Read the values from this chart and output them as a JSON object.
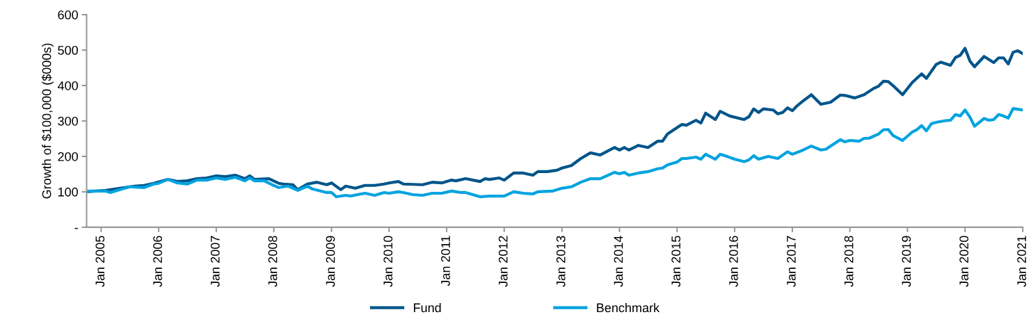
{
  "chart_data": {
    "type": "line",
    "ylabel": "Growth of $100,000 ($000s)",
    "xlim": [
      "2004-10",
      "2021-01"
    ],
    "xticks": [
      {
        "value": "2005-01",
        "label": "Jan 2005"
      },
      {
        "value": "2006-01",
        "label": "Jan 2006"
      },
      {
        "value": "2007-01",
        "label": "Jan 2007"
      },
      {
        "value": "2008-01",
        "label": "Jan 2008"
      },
      {
        "value": "2009-01",
        "label": "Jan 2009"
      },
      {
        "value": "2010-01",
        "label": "Jan 2010"
      },
      {
        "value": "2011-01",
        "label": "Jan 2011"
      },
      {
        "value": "2012-01",
        "label": "Jan 2012"
      },
      {
        "value": "2013-01",
        "label": "Jan 2013"
      },
      {
        "value": "2014-01",
        "label": "Jan 2014"
      },
      {
        "value": "2015-01",
        "label": "Jan 2015"
      },
      {
        "value": "2016-01",
        "label": "Jan 2016"
      },
      {
        "value": "2017-01",
        "label": "Jan 2017"
      },
      {
        "value": "2018-01",
        "label": "Jan 2018"
      },
      {
        "value": "2019-01",
        "label": "Jan 2019"
      },
      {
        "value": "2020-01",
        "label": "Jan 2020"
      },
      {
        "value": "2021-01",
        "label": "Jan 2021"
      }
    ],
    "ylim": [
      0,
      600
    ],
    "yticks": [
      {
        "value": 0,
        "label": "-"
      },
      100,
      200,
      300,
      400,
      500,
      600
    ],
    "grid": false,
    "legend": "bottom",
    "marker": "none",
    "line_style": "solid",
    "series": [
      {
        "name": "Fund",
        "color": "#00558a",
        "x": [
          "2004-10",
          "2005-02",
          "2005-05",
          "2005-08",
          "2005-10",
          "2005-12",
          "2006-03",
          "2006-05",
          "2006-07",
          "2006-09",
          "2006-11",
          "2007-01",
          "2007-03",
          "2007-05",
          "2007-07",
          "2007-08",
          "2007-09",
          "2007-12",
          "2008-02",
          "2008-03",
          "2008-05",
          "2008-06",
          "2008-08",
          "2008-10",
          "2008-12",
          "2009-01",
          "2009-03",
          "2009-04",
          "2009-06",
          "2009-08",
          "2009-10",
          "2009-12",
          "2010-01",
          "2010-03",
          "2010-04",
          "2010-08",
          "2010-10",
          "2010-12",
          "2011-02",
          "2011-03",
          "2011-05",
          "2011-08",
          "2011-09",
          "2011-10",
          "2011-12",
          "2012-01",
          "2012-03",
          "2012-05",
          "2012-07",
          "2012-08",
          "2012-10",
          "2012-12",
          "2013-01",
          "2013-03",
          "2013-05",
          "2013-07",
          "2013-09",
          "2013-12",
          "2014-01",
          "2014-02",
          "2014-03",
          "2014-05",
          "2014-07",
          "2014-09",
          "2014-10",
          "2014-11",
          "2015-02",
          "2015-03",
          "2015-05",
          "2015-06",
          "2015-07",
          "2015-09",
          "2015-10",
          "2015-12",
          "2016-03",
          "2016-04",
          "2016-05",
          "2016-06",
          "2016-07",
          "2016-09",
          "2016-10",
          "2016-11",
          "2016-12",
          "2017-01",
          "2017-02",
          "2017-03",
          "2017-05",
          "2017-07",
          "2017-09",
          "2017-11",
          "2017-12",
          "2018-02",
          "2018-04",
          "2018-06",
          "2018-07",
          "2018-08",
          "2018-09",
          "2018-10",
          "2018-12",
          "2019-02",
          "2019-04",
          "2019-05",
          "2019-07",
          "2019-08",
          "2019-10",
          "2019-11",
          "2019-12",
          "2020-01",
          "2020-02",
          "2020-03",
          "2020-05",
          "2020-07",
          "2020-08",
          "2020-09",
          "2020-10",
          "2020-11",
          "2020-12",
          "2021-01"
        ],
        "values": [
          100,
          104,
          110,
          116,
          118,
          124,
          135,
          129,
          131,
          137,
          139,
          145,
          143,
          147,
          137,
          145,
          135,
          137,
          124,
          122,
          120,
          106,
          122,
          127,
          120,
          125,
          106,
          116,
          110,
          118,
          118,
          122,
          125,
          129,
          122,
          120,
          127,
          125,
          133,
          131,
          137,
          129,
          137,
          135,
          139,
          133,
          153,
          153,
          147,
          157,
          157,
          161,
          167,
          174,
          194,
          210,
          204,
          225,
          218,
          225,
          218,
          231,
          225,
          243,
          243,
          263,
          290,
          288,
          302,
          294,
          322,
          304,
          327,
          314,
          304,
          312,
          334,
          324,
          334,
          331,
          320,
          324,
          337,
          329,
          343,
          353,
          374,
          347,
          353,
          373,
          372,
          365,
          374,
          392,
          398,
          412,
          411,
          400,
          374,
          409,
          433,
          420,
          459,
          466,
          457,
          479,
          485,
          505,
          469,
          453,
          482,
          465,
          478,
          478,
          461,
          494,
          498,
          490
        ]
      },
      {
        "name": "Benchmark",
        "color": "#00a3e0",
        "x": [
          "2004-10",
          "2004-11",
          "2005-02",
          "2005-03",
          "2005-05",
          "2005-07",
          "2005-10",
          "2005-12",
          "2006-01",
          "2006-03",
          "2006-05",
          "2006-07",
          "2006-09",
          "2006-11",
          "2007-01",
          "2007-03",
          "2007-05",
          "2007-07",
          "2007-08",
          "2007-09",
          "2007-11",
          "2008-01",
          "2008-02",
          "2008-04",
          "2008-06",
          "2008-08",
          "2008-09",
          "2008-12",
          "2009-01",
          "2009-02",
          "2009-04",
          "2009-05",
          "2009-08",
          "2009-10",
          "2009-12",
          "2010-01",
          "2010-03",
          "2010-04",
          "2010-06",
          "2010-08",
          "2010-10",
          "2010-12",
          "2011-02",
          "2011-04",
          "2011-05",
          "2011-08",
          "2011-10",
          "2012-01",
          "2012-03",
          "2012-05",
          "2012-07",
          "2012-08",
          "2012-11",
          "2013-01",
          "2013-03",
          "2013-05",
          "2013-07",
          "2013-09",
          "2013-12",
          "2014-01",
          "2014-02",
          "2014-03",
          "2014-05",
          "2014-07",
          "2014-09",
          "2014-10",
          "2014-11",
          "2015-01",
          "2015-02",
          "2015-03",
          "2015-05",
          "2015-06",
          "2015-07",
          "2015-09",
          "2015-10",
          "2015-11",
          "2016-01",
          "2016-03",
          "2016-04",
          "2016-05",
          "2016-06",
          "2016-08",
          "2016-10",
          "2016-12",
          "2017-01",
          "2017-03",
          "2017-05",
          "2017-07",
          "2017-08",
          "2017-11",
          "2017-12",
          "2018-01",
          "2018-03",
          "2018-04",
          "2018-05",
          "2018-07",
          "2018-08",
          "2018-09",
          "2018-10",
          "2018-12",
          "2019-02",
          "2019-03",
          "2019-04",
          "2019-05",
          "2019-06",
          "2019-07",
          "2019-09",
          "2019-10",
          "2019-11",
          "2019-12",
          "2020-01",
          "2020-02",
          "2020-03",
          "2020-05",
          "2020-06",
          "2020-07",
          "2020-08",
          "2020-09",
          "2020-10",
          "2020-11",
          "2021-01"
        ],
        "values": [
          100,
          102,
          102,
          98,
          106,
          114,
          112,
          122,
          124,
          135,
          125,
          122,
          133,
          133,
          139,
          135,
          141,
          131,
          139,
          131,
          131,
          118,
          112,
          116,
          104,
          116,
          108,
          98,
          98,
          86,
          90,
          88,
          96,
          90,
          98,
          96,
          100,
          98,
          92,
          90,
          96,
          96,
          102,
          98,
          98,
          86,
          88,
          88,
          100,
          96,
          94,
          100,
          102,
          110,
          114,
          127,
          137,
          137,
          155,
          151,
          155,
          147,
          153,
          157,
          165,
          167,
          176,
          184,
          194,
          194,
          198,
          192,
          206,
          192,
          206,
          202,
          192,
          185,
          190,
          202,
          192,
          200,
          194,
          213,
          206,
          216,
          229,
          218,
          220,
          247,
          241,
          245,
          243,
          251,
          251,
          263,
          275,
          276,
          259,
          245,
          269,
          275,
          287,
          272,
          292,
          296,
          301,
          302,
          318,
          314,
          331,
          311,
          285,
          307,
          302,
          304,
          318,
          314,
          308,
          335,
          331
        ]
      }
    ]
  }
}
